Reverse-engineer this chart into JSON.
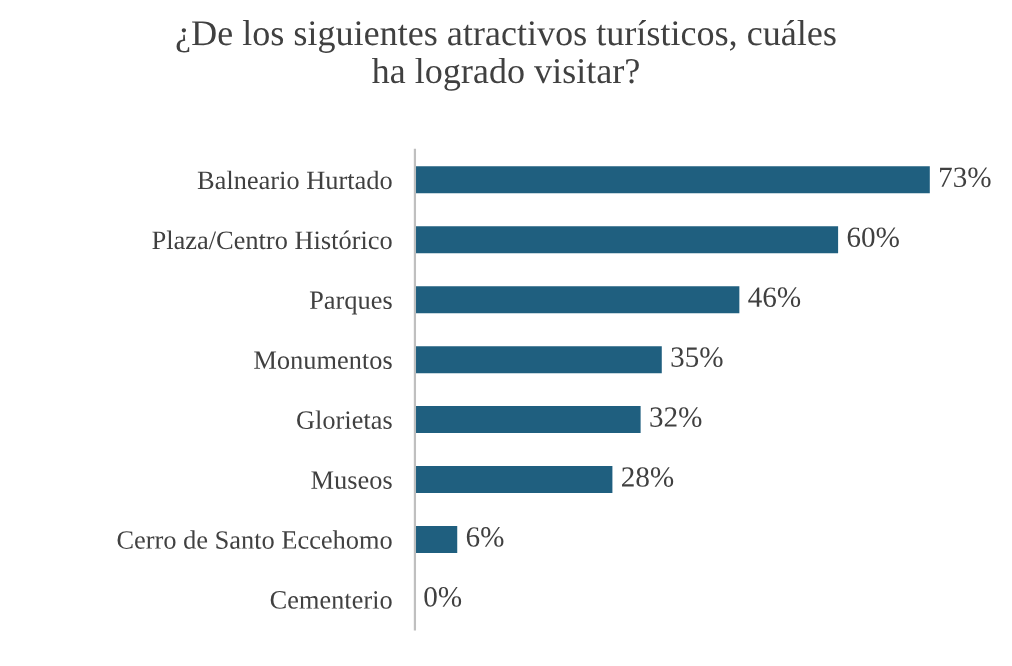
{
  "chart_data": {
    "type": "bar",
    "orientation": "horizontal",
    "title": "¿De los siguientes atractivos turísticos, cuáles\nha logrado visitar?",
    "categories": [
      "Balneario Hurtado",
      "Plaza/Centro Histórico",
      "Parques",
      "Monumentos",
      "Glorietas",
      "Museos",
      "Cerro de Santo Eccehomo",
      "Cementerio"
    ],
    "values": [
      73,
      60,
      46,
      35,
      32,
      28,
      6,
      0
    ],
    "value_labels": [
      "73%",
      "60%",
      "46%",
      "35%",
      "32%",
      "28%",
      "6%",
      "0%"
    ],
    "color": "#1f5f7f",
    "grid": false,
    "legend": false
  }
}
